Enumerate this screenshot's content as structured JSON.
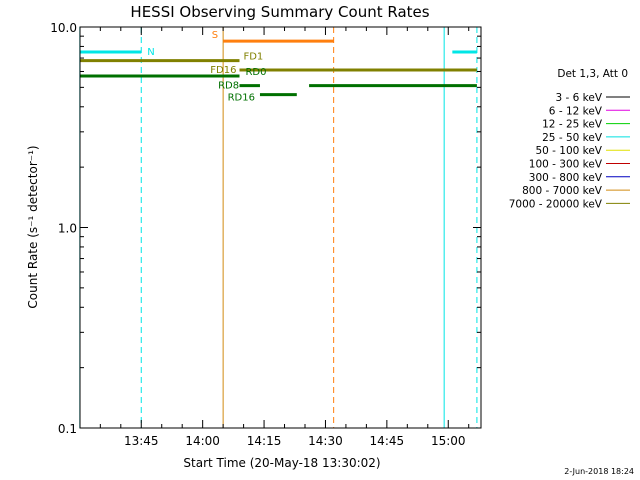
{
  "chart_data": {
    "type": "line",
    "title": "HESSI Observing Summary Count Rates",
    "xlabel": "Start Time (20-May-18 13:30:02)",
    "ylabel": "Count Rate (s⁻¹ detector⁻¹)",
    "y_scale": "log",
    "ylim": [
      0.1,
      10.0
    ],
    "xlim": [
      "13:30:02",
      "15:08:00"
    ],
    "x_ticks": [
      "13:45",
      "14:00",
      "14:15",
      "14:30",
      "14:45",
      "15:00"
    ],
    "y_ticks": [
      "0.1",
      "1.0",
      "10.0"
    ],
    "grid": false,
    "legend": {
      "placement": "right",
      "title": "Det 1,3, Att 0",
      "entries": [
        {
          "label": "3 - 6 keV",
          "color": "#000000"
        },
        {
          "label": "6 - 12 keV",
          "color": "#e000e0"
        },
        {
          "label": "12 - 25 keV",
          "color": "#00d000"
        },
        {
          "label": "25 - 50 keV",
          "color": "#00e0e0"
        },
        {
          "label": "50 - 100 keV",
          "color": "#e0e000"
        },
        {
          "label": "100 - 300 keV",
          "color": "#c00000"
        },
        {
          "label": "300 - 800 keV",
          "color": "#0000c0"
        },
        {
          "label": "800 - 7000 keV",
          "color": "#d08a10"
        },
        {
          "label": "7000 - 20000 keV",
          "color": "#808000"
        }
      ]
    },
    "series": [
      {
        "label": "N",
        "color": "#00e6e6",
        "y": 7.5,
        "segments": [
          [
            "13:30",
            "13:45"
          ],
          [
            "15:01",
            "15:07"
          ]
        ]
      },
      {
        "label": "S",
        "color": "#ff7f0e",
        "y": 8.5,
        "segments": [
          [
            "14:05",
            "14:32"
          ]
        ]
      },
      {
        "label": "FD1",
        "color": "#808000",
        "y": 6.8,
        "segments": [
          [
            "13:30",
            "14:09"
          ]
        ]
      },
      {
        "label": "FD16",
        "color": "#808000",
        "y": 6.1,
        "segments": [
          [
            "14:09",
            "15:07"
          ]
        ]
      },
      {
        "label": "RD0",
        "color": "#007000",
        "y": 5.7,
        "segments": [
          [
            "13:30",
            "14:09"
          ]
        ]
      },
      {
        "label": "RD8",
        "color": "#007000",
        "y": 5.1,
        "segments": [
          [
            "14:26",
            "15:07"
          ]
        ]
      },
      {
        "label": "RD16",
        "color": "#007000",
        "y": 4.6,
        "segments": [
          [
            "14:14",
            "14:23"
          ]
        ]
      },
      {
        "label": "",
        "color": "#007000",
        "y": 5.1,
        "segments": [
          [
            "14:09",
            "14:14"
          ]
        ]
      }
    ],
    "vertical_lines": [
      {
        "x": "13:30",
        "color": "#00e6e6",
        "style": "solid"
      },
      {
        "x": "13:45",
        "color": "#00e6e6",
        "style": "dashed"
      },
      {
        "x": "14:05",
        "color": "#d08a10",
        "style": "solid"
      },
      {
        "x": "14:32",
        "color": "#ff7f0e",
        "style": "dashed"
      },
      {
        "x": "14:59",
        "color": "#00e6e6",
        "style": "solid"
      },
      {
        "x": "15:07",
        "color": "#00e6e6",
        "style": "dashed"
      }
    ]
  },
  "footer": {
    "timestamp": "2-Jun-2018 18:24"
  }
}
